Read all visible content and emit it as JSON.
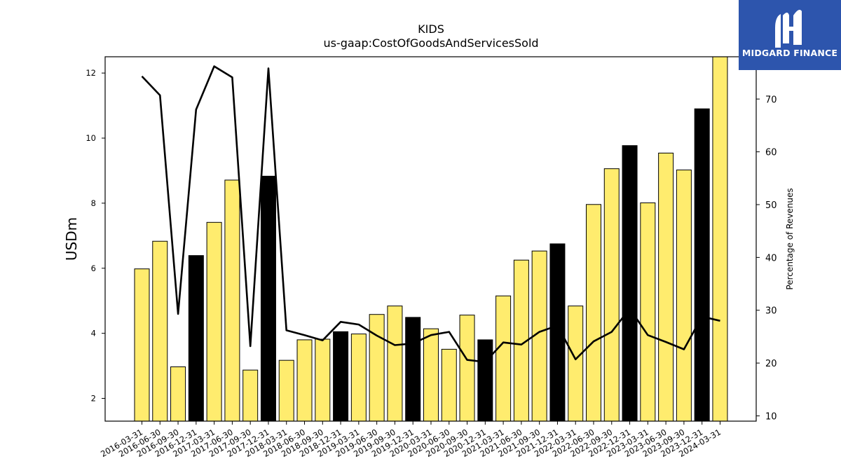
{
  "chart_data": {
    "type": "bar",
    "title": "KIDS",
    "subtitle": "us-gaap:CostOfGoodsAndServicesSold",
    "ylabel": "USDm",
    "y2label": "Percentage of Revenues",
    "ylim": [
      1.3,
      12.5
    ],
    "y2lim": [
      9.0,
      78.0
    ],
    "yticks": [
      2,
      4,
      6,
      8,
      10,
      12
    ],
    "y2ticks": [
      10,
      20,
      30,
      40,
      50,
      60,
      70
    ],
    "categories": [
      "2016-03-31",
      "2016-06-30",
      "2016-09-30",
      "2016-12-31",
      "2017-03-31",
      "2017-06-30",
      "2017-09-30",
      "2017-12-31",
      "2018-03-31",
      "2018-06-30",
      "2018-09-30",
      "2018-12-31",
      "2019-03-31",
      "2019-06-30",
      "2019-09-30",
      "2019-12-31",
      "2020-03-31",
      "2020-06-30",
      "2020-09-30",
      "2020-12-31",
      "2021-03-31",
      "2021-06-30",
      "2021-09-30",
      "2021-12-31",
      "2022-03-31",
      "2022-06-30",
      "2022-09-30",
      "2022-12-31",
      "2023-03-31",
      "2023-06-30",
      "2023-09-30",
      "2023-12-31",
      "2024-03-31"
    ],
    "series": [
      {
        "type": "bar",
        "axis": "left",
        "values": [
          5.98,
          6.83,
          2.97,
          6.39,
          7.41,
          8.71,
          2.87,
          8.83,
          3.17,
          3.8,
          3.82,
          4.05,
          3.98,
          4.58,
          4.84,
          4.49,
          4.14,
          3.51,
          4.56,
          3.8,
          5.15,
          6.25,
          6.53,
          6.75,
          4.84,
          7.96,
          9.06,
          9.77,
          8.01,
          9.54,
          9.02,
          10.9,
          12.6
        ],
        "quarter_end_color": "#000000",
        "color": "#ffec6e"
      },
      {
        "type": "line",
        "axis": "right",
        "color": "#000000",
        "values": [
          74.3,
          70.7,
          29.3,
          68.0,
          76.2,
          74.1,
          23.2,
          75.8,
          26.2,
          25.3,
          24.3,
          27.8,
          27.3,
          25.2,
          23.4,
          23.7,
          25.3,
          25.9,
          20.6,
          20.2,
          23.9,
          23.5,
          25.9,
          27.1,
          20.7,
          24.1,
          25.9,
          30.3,
          25.3,
          24.0,
          22.6,
          28.8,
          28.0
        ]
      }
    ],
    "colors": {
      "bar": "#ffec6e",
      "bar_highlight": "#000000",
      "line": "#000000"
    }
  },
  "logo": {
    "text": "MIDGARD FINANCE",
    "bg": "#2d55ad"
  }
}
